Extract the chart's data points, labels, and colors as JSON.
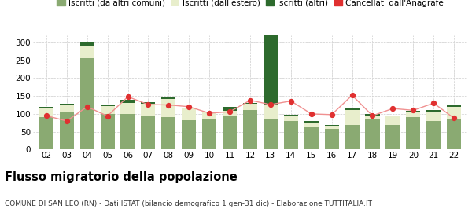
{
  "years": [
    "02",
    "03",
    "04",
    "05",
    "06",
    "07",
    "08",
    "09",
    "10",
    "11",
    "12",
    "13",
    "14",
    "15",
    "16",
    "17",
    "18",
    "19",
    "20",
    "21",
    "22"
  ],
  "iscritti_comuni": [
    90,
    105,
    255,
    100,
    100,
    93,
    90,
    83,
    85,
    93,
    110,
    85,
    80,
    63,
    57,
    70,
    87,
    68,
    90,
    80,
    85
  ],
  "iscritti_estero": [
    25,
    18,
    35,
    22,
    30,
    35,
    52,
    35,
    20,
    15,
    18,
    40,
    15,
    12,
    10,
    40,
    7,
    25,
    15,
    27,
    35
  ],
  "iscritti_altri": [
    5,
    5,
    10,
    4,
    10,
    5,
    5,
    0,
    0,
    12,
    3,
    225,
    3,
    5,
    3,
    5,
    5,
    2,
    3,
    3,
    5
  ],
  "cancellati": [
    95,
    80,
    120,
    94,
    148,
    126,
    125,
    120,
    102,
    106,
    138,
    126,
    136,
    100,
    98,
    152,
    95,
    115,
    110,
    130,
    88
  ],
  "color_comuni": "#8aaa72",
  "color_estero": "#e8eecc",
  "color_altri": "#2d6a2d",
  "color_cancellati": "#e03030",
  "color_cancellati_line": "#f09090",
  "color_grid": "#cccccc",
  "color_bg": "#ffffff",
  "ylim": [
    0,
    320
  ],
  "yticks": [
    0,
    50,
    100,
    150,
    200,
    250,
    300
  ],
  "title": "Flusso migratorio della popolazione",
  "subtitle": "COMUNE DI SAN LEO (RN) - Dati ISTAT (bilancio demografico 1 gen-31 dic) - Elaborazione TUTTITALIA.IT",
  "legend_labels": [
    "Iscritti (da altri comuni)",
    "Iscritti (dall'estero)",
    "Iscritti (altri)",
    "Cancellati dall'Anagrafe"
  ],
  "title_fontsize": 10.5,
  "subtitle_fontsize": 6.5,
  "legend_fontsize": 7.5,
  "tick_fontsize": 7.5
}
